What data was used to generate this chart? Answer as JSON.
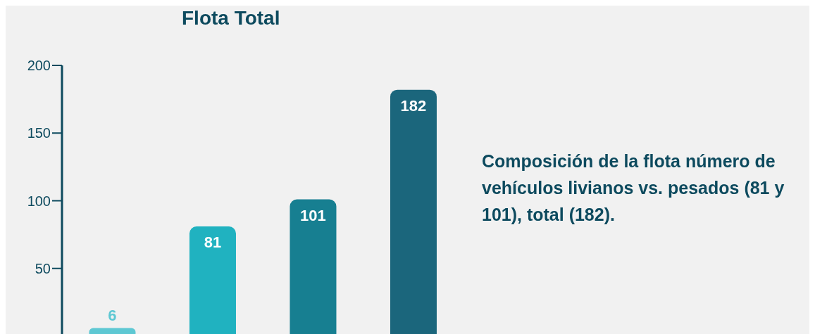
{
  "chart_data": {
    "type": "bar",
    "title": "Flota Total",
    "categories": [
      null,
      null,
      null,
      null
    ],
    "values": [
      6,
      81,
      101,
      182
    ],
    "colors": [
      "#5ec8d3",
      "#20b2c0",
      "#177f91",
      "#1b667c"
    ],
    "ylim": [
      0,
      200
    ],
    "yticks": [
      50,
      100,
      150,
      200
    ],
    "grid": false,
    "data_labels": true,
    "annotations": [
      "Composición de la flota número de vehículos livianos vs. pesados (81 y 101), total (182)."
    ]
  }
}
